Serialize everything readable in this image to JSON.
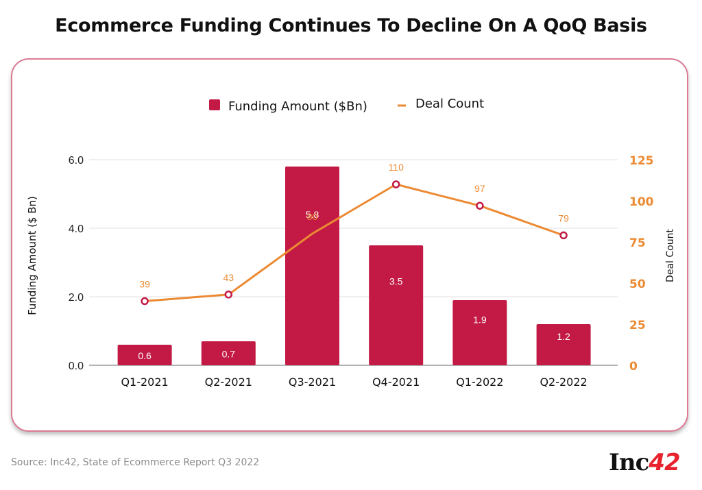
{
  "page": {
    "title": "Ecommerce Funding Continues To Decline On A QoQ Basis",
    "source": "Source: Inc42, State of Ecommerce Report Q3 2022",
    "logo": {
      "text": "Inc",
      "number": "42"
    }
  },
  "colors": {
    "bar": "#c21a45",
    "line": "#ec8a33",
    "marker_stroke": "#c21a45",
    "grid": "#e2e2e2",
    "axis": "#9a9a9a",
    "right_tick": "#ec8a33",
    "card_border": "#dc7a94"
  },
  "chart_data": {
    "type": "bar",
    "title": "Ecommerce Funding Continues To Decline On A QoQ Basis",
    "categories": [
      "Q1-2021",
      "Q2-2021",
      "Q3-2021",
      "Q4-2021",
      "Q1-2022",
      "Q2-2022"
    ],
    "series": [
      {
        "name": "Funding Amount ($Bn)",
        "type": "bar",
        "axis": "left",
        "values": [
          0.6,
          0.7,
          5.8,
          3.5,
          1.9,
          1.2
        ],
        "labels": [
          "0.6",
          "0.7",
          "5.8",
          "3.5",
          "1.9",
          "1.2"
        ]
      },
      {
        "name": "Deal Count",
        "type": "line",
        "axis": "right",
        "values": [
          39,
          43,
          80,
          110,
          97,
          79
        ],
        "labels": [
          "39",
          "43",
          "80",
          "110",
          "97",
          "79"
        ],
        "markers": [
          true,
          true,
          false,
          true,
          true,
          true
        ]
      }
    ],
    "ylabel": "Funding Amount ($ Bn)",
    "y2label": "Deal Count",
    "xlabel": "",
    "ylim": [
      0,
      6
    ],
    "y2lim": [
      0,
      125
    ],
    "yticks": [
      "0.0",
      "2.0",
      "4.0",
      "6.0"
    ],
    "ytick_values": [
      0,
      2,
      4,
      6
    ],
    "y2ticks": [
      "0",
      "25",
      "50",
      "75",
      "100",
      "125"
    ],
    "y2tick_values": [
      0,
      25,
      50,
      75,
      100,
      125
    ],
    "grid": true,
    "legend": {
      "position": "top-center",
      "entries": [
        "Funding Amount ($Bn)",
        "Deal Count"
      ]
    }
  }
}
